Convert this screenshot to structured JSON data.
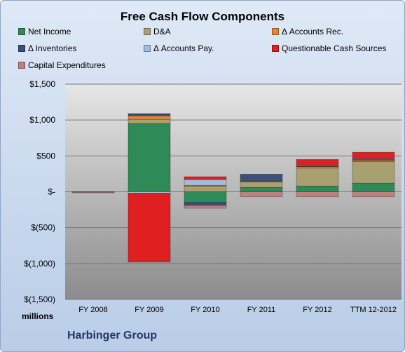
{
  "chart_data": {
    "type": "bar",
    "stacked": true,
    "title": "Free Cash Flow Components",
    "units": "millions",
    "categories": [
      "FY 2008",
      "FY 2009",
      "FY 2010",
      "FY 2011",
      "FY 2012",
      "TTM 12-2012"
    ],
    "ylim": [
      -1500,
      1500
    ],
    "yticks": [
      -1500,
      -1000,
      -500,
      0,
      500,
      1000,
      1500
    ],
    "ytick_labels": [
      "$(1,500)",
      "$(1,000)",
      "$(500)",
      "$-",
      "$500",
      "$1,000",
      "$1,500"
    ],
    "grid": true,
    "legend_position": "top",
    "series": [
      {
        "name": "Net Income",
        "color": "#2e8b57",
        "values": [
          -5,
          950,
          -150,
          60,
          80,
          120
        ]
      },
      {
        "name": "D&A",
        "color": "#a8a070",
        "values": [
          0,
          60,
          80,
          80,
          250,
          300
        ]
      },
      {
        "name": "Δ Accounts Rec.",
        "color": "#e8862a",
        "values": [
          0,
          50,
          10,
          5,
          20,
          20
        ]
      },
      {
        "name": "Δ Inventories",
        "color": "#3b4f7a",
        "values": [
          0,
          30,
          -40,
          100,
          10,
          10
        ]
      },
      {
        "name": "Δ Accounts Pay.",
        "color": "#9fbde0",
        "values": [
          0,
          -20,
          80,
          0,
          10,
          10
        ]
      },
      {
        "name": "Questionable Cash Sources",
        "color": "#e02020",
        "values": [
          0,
          -950,
          40,
          0,
          80,
          90
        ]
      },
      {
        "name": "Capital Expenditures",
        "color": "#c08080",
        "values": [
          -10,
          -10,
          -40,
          -70,
          -70,
          -70
        ]
      }
    ]
  },
  "company": "Harbinger Group"
}
